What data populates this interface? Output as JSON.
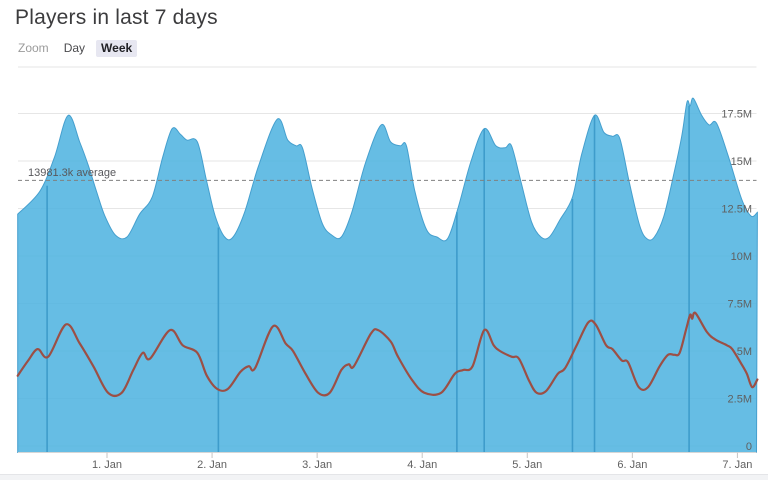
{
  "page": {
    "title": "Players in last 7 days"
  },
  "range_selector": {
    "zoom_label": "Zoom",
    "options": [
      {
        "label": "Day",
        "selected": false
      },
      {
        "label": "Week",
        "selected": true
      }
    ]
  },
  "chart_data": {
    "type": "area",
    "title": "Players in last 7 days",
    "legend": {
      "show": false
    },
    "grid": {
      "show": true,
      "color": "#e6e6e6"
    },
    "x_axis": {
      "tick_labels": [
        "1. Jan",
        "2. Jan",
        "3. Jan",
        "4. Jan",
        "5. Jan",
        "6. Jan",
        "7. Jan"
      ],
      "tick_positions_days": [
        1,
        2,
        3,
        4,
        5,
        6,
        7
      ],
      "range_days": [
        0.15,
        7.19
      ]
    },
    "y_axis": {
      "tick_labels": [
        "0",
        "2.5M",
        "5M",
        "7.5M",
        "10M",
        "12.5M",
        "15M",
        "17.5M"
      ],
      "tick_values_millions": [
        0,
        2.5,
        5,
        7.5,
        10,
        12.5,
        15,
        17.5
      ],
      "range_millions": [
        0,
        19.9
      ],
      "position": "right"
    },
    "average_line": {
      "label": "13981.3k average",
      "value_thousands": 13981.3,
      "dash": "4,3",
      "color": "#808080",
      "label_color": "#58585c"
    },
    "series": [
      {
        "name": "area-series-blue",
        "type": "area",
        "color": "#51b4e0",
        "fill_opacity": 0.88,
        "line_color": "#459fce",
        "points_day_millions": [
          [
            0.15,
            12.2
          ],
          [
            0.36,
            13.4
          ],
          [
            0.5,
            15.2
          ],
          [
            0.63,
            17.4
          ],
          [
            0.74,
            16.0
          ],
          [
            0.82,
            14.8
          ],
          [
            0.9,
            13.4
          ],
          [
            0.98,
            12.1
          ],
          [
            1.08,
            11.1
          ],
          [
            1.19,
            11.0
          ],
          [
            1.31,
            12.2
          ],
          [
            1.43,
            13.1
          ],
          [
            1.53,
            15.2
          ],
          [
            1.62,
            16.7
          ],
          [
            1.7,
            16.4
          ],
          [
            1.76,
            16.1
          ],
          [
            1.86,
            16.0
          ],
          [
            1.95,
            13.9
          ],
          [
            2.03,
            12.1
          ],
          [
            2.12,
            11.0
          ],
          [
            2.2,
            11.0
          ],
          [
            2.31,
            12.3
          ],
          [
            2.44,
            14.7
          ],
          [
            2.62,
            17.2
          ],
          [
            2.72,
            16.1
          ],
          [
            2.8,
            15.8
          ],
          [
            2.86,
            15.7
          ],
          [
            2.95,
            13.6
          ],
          [
            3.05,
            11.7
          ],
          [
            3.14,
            11.1
          ],
          [
            3.23,
            11.0
          ],
          [
            3.33,
            12.3
          ],
          [
            3.46,
            14.9
          ],
          [
            3.61,
            16.9
          ],
          [
            3.7,
            16.0
          ],
          [
            3.79,
            15.8
          ],
          [
            3.85,
            15.8
          ],
          [
            3.93,
            13.4
          ],
          [
            4.04,
            11.4
          ],
          [
            4.14,
            11.0
          ],
          [
            4.24,
            10.9
          ],
          [
            4.34,
            12.5
          ],
          [
            4.46,
            14.9
          ],
          [
            4.59,
            16.7
          ],
          [
            4.7,
            15.8
          ],
          [
            4.79,
            15.7
          ],
          [
            4.85,
            15.8
          ],
          [
            4.94,
            13.9
          ],
          [
            5.04,
            11.8
          ],
          [
            5.13,
            11.0
          ],
          [
            5.21,
            11.0
          ],
          [
            5.31,
            11.9
          ],
          [
            5.43,
            13.1
          ],
          [
            5.52,
            15.4
          ],
          [
            5.64,
            17.4
          ],
          [
            5.73,
            16.5
          ],
          [
            5.81,
            16.3
          ],
          [
            5.88,
            16.2
          ],
          [
            5.97,
            13.9
          ],
          [
            6.07,
            11.6
          ],
          [
            6.14,
            10.9
          ],
          [
            6.21,
            11.0
          ],
          [
            6.3,
            12.1
          ],
          [
            6.39,
            14.2
          ],
          [
            6.47,
            16.3
          ],
          [
            6.52,
            18.1
          ],
          [
            6.55,
            17.9
          ],
          [
            6.58,
            18.3
          ],
          [
            6.66,
            17.4
          ],
          [
            6.73,
            16.9
          ],
          [
            6.8,
            17.0
          ],
          [
            6.91,
            15.3
          ],
          [
            7.04,
            13.0
          ],
          [
            7.13,
            12.1
          ],
          [
            7.19,
            12.3
          ]
        ]
      },
      {
        "name": "line-series-red",
        "type": "line",
        "color": "#9c4f45",
        "width": 2.2,
        "points_day_millions": [
          [
            0.15,
            3.7
          ],
          [
            0.25,
            4.5
          ],
          [
            0.34,
            5.1
          ],
          [
            0.44,
            4.7
          ],
          [
            0.61,
            6.4
          ],
          [
            0.74,
            5.4
          ],
          [
            0.87,
            4.2
          ],
          [
            1.01,
            2.8
          ],
          [
            1.14,
            2.8
          ],
          [
            1.25,
            4.0
          ],
          [
            1.34,
            4.9
          ],
          [
            1.41,
            4.6
          ],
          [
            1.6,
            6.1
          ],
          [
            1.72,
            5.3
          ],
          [
            1.86,
            4.9
          ],
          [
            1.95,
            3.7
          ],
          [
            2.05,
            3.0
          ],
          [
            2.15,
            3.0
          ],
          [
            2.27,
            3.9
          ],
          [
            2.35,
            4.2
          ],
          [
            2.41,
            4.1
          ],
          [
            2.58,
            6.3
          ],
          [
            2.7,
            5.4
          ],
          [
            2.77,
            5.0
          ],
          [
            2.89,
            3.8
          ],
          [
            3.01,
            2.8
          ],
          [
            3.12,
            2.8
          ],
          [
            3.23,
            4.0
          ],
          [
            3.3,
            4.3
          ],
          [
            3.35,
            4.2
          ],
          [
            3.51,
            5.9
          ],
          [
            3.58,
            6.1
          ],
          [
            3.7,
            5.5
          ],
          [
            3.77,
            4.7
          ],
          [
            3.9,
            3.5
          ],
          [
            4.02,
            2.8
          ],
          [
            4.18,
            2.8
          ],
          [
            4.31,
            3.8
          ],
          [
            4.39,
            4.0
          ],
          [
            4.48,
            4.2
          ],
          [
            4.59,
            6.1
          ],
          [
            4.68,
            5.3
          ],
          [
            4.74,
            5.0
          ],
          [
            4.85,
            4.7
          ],
          [
            4.92,
            4.6
          ],
          [
            5.02,
            3.4
          ],
          [
            5.09,
            2.8
          ],
          [
            5.18,
            2.9
          ],
          [
            5.29,
            3.8
          ],
          [
            5.36,
            4.1
          ],
          [
            5.47,
            5.3
          ],
          [
            5.58,
            6.5
          ],
          [
            5.65,
            6.4
          ],
          [
            5.75,
            5.3
          ],
          [
            5.81,
            5.1
          ],
          [
            5.9,
            4.5
          ],
          [
            5.96,
            4.4
          ],
          [
            6.06,
            3.1
          ],
          [
            6.15,
            3.1
          ],
          [
            6.26,
            4.2
          ],
          [
            6.34,
            4.8
          ],
          [
            6.4,
            4.8
          ],
          [
            6.45,
            4.9
          ],
          [
            6.51,
            6.1
          ],
          [
            6.55,
            6.9
          ],
          [
            6.57,
            6.7
          ],
          [
            6.6,
            7.0
          ],
          [
            6.71,
            6.0
          ],
          [
            6.79,
            5.6
          ],
          [
            6.9,
            5.3
          ],
          [
            6.95,
            5.1
          ],
          [
            7.04,
            4.3
          ],
          [
            7.09,
            3.8
          ],
          [
            7.14,
            3.1
          ],
          [
            7.19,
            3.5
          ]
        ]
      }
    ],
    "vertical_marks": {
      "color": "#3e9ccb",
      "points_day_topmillions": [
        [
          0.43,
          13.7
        ],
        [
          2.06,
          11.5
        ],
        [
          4.33,
          12.3
        ],
        [
          4.59,
          16.7
        ],
        [
          5.43,
          13.0
        ],
        [
          5.64,
          17.4
        ],
        [
          6.54,
          17.9
        ]
      ]
    },
    "axis_text_color": "#606060",
    "axis_line_color": "#d6d6d6",
    "top_border_color": "#e6e6e6"
  }
}
